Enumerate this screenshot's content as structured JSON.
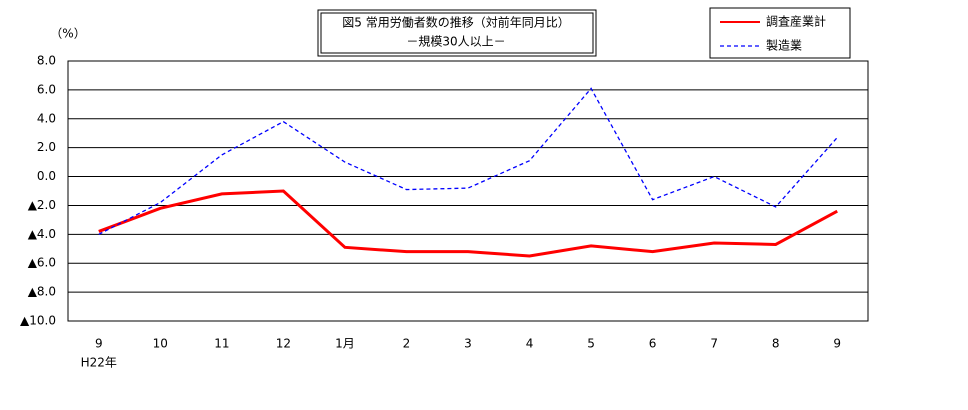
{
  "chart_data": {
    "type": "line",
    "title": "図5 常用労働者数の推移（対前年同月比）",
    "subtitle": "－規模30人以上－",
    "y_label": "（%）",
    "x_annotation": "H22年",
    "categories": [
      "9",
      "10",
      "11",
      "12",
      "1月",
      "2",
      "3",
      "4",
      "5",
      "6",
      "7",
      "8",
      "9"
    ],
    "series": [
      {
        "name": "調査産業計",
        "color": "#ff0000",
        "style": "solid",
        "values": [
          -3.8,
          -2.2,
          -1.2,
          -1.0,
          -4.9,
          -5.2,
          -5.2,
          -5.5,
          -4.8,
          -5.2,
          -4.6,
          -4.7,
          -2.4
        ]
      },
      {
        "name": "製造業",
        "color": "#0000ff",
        "style": "dashed",
        "values": [
          -4.0,
          -1.8,
          1.5,
          3.8,
          1.0,
          -0.9,
          -0.8,
          1.1,
          6.1,
          -1.6,
          0.0,
          -2.1,
          2.7
        ]
      }
    ],
    "ylim": [
      -10,
      8
    ],
    "yticks": [
      {
        "value": 8,
        "label": "8.0"
      },
      {
        "value": 6,
        "label": "6.0"
      },
      {
        "value": 4,
        "label": "4.0"
      },
      {
        "value": 2,
        "label": "2.0"
      },
      {
        "value": 0,
        "label": "0.0"
      },
      {
        "value": -2,
        "label": "▲2.0"
      },
      {
        "value": -4,
        "label": "▲4.0"
      },
      {
        "value": -6,
        "label": "▲6.0"
      },
      {
        "value": -8,
        "label": "▲8.0"
      },
      {
        "value": -10,
        "label": "▲10.0"
      }
    ],
    "grid": true,
    "legend": "top-right"
  }
}
